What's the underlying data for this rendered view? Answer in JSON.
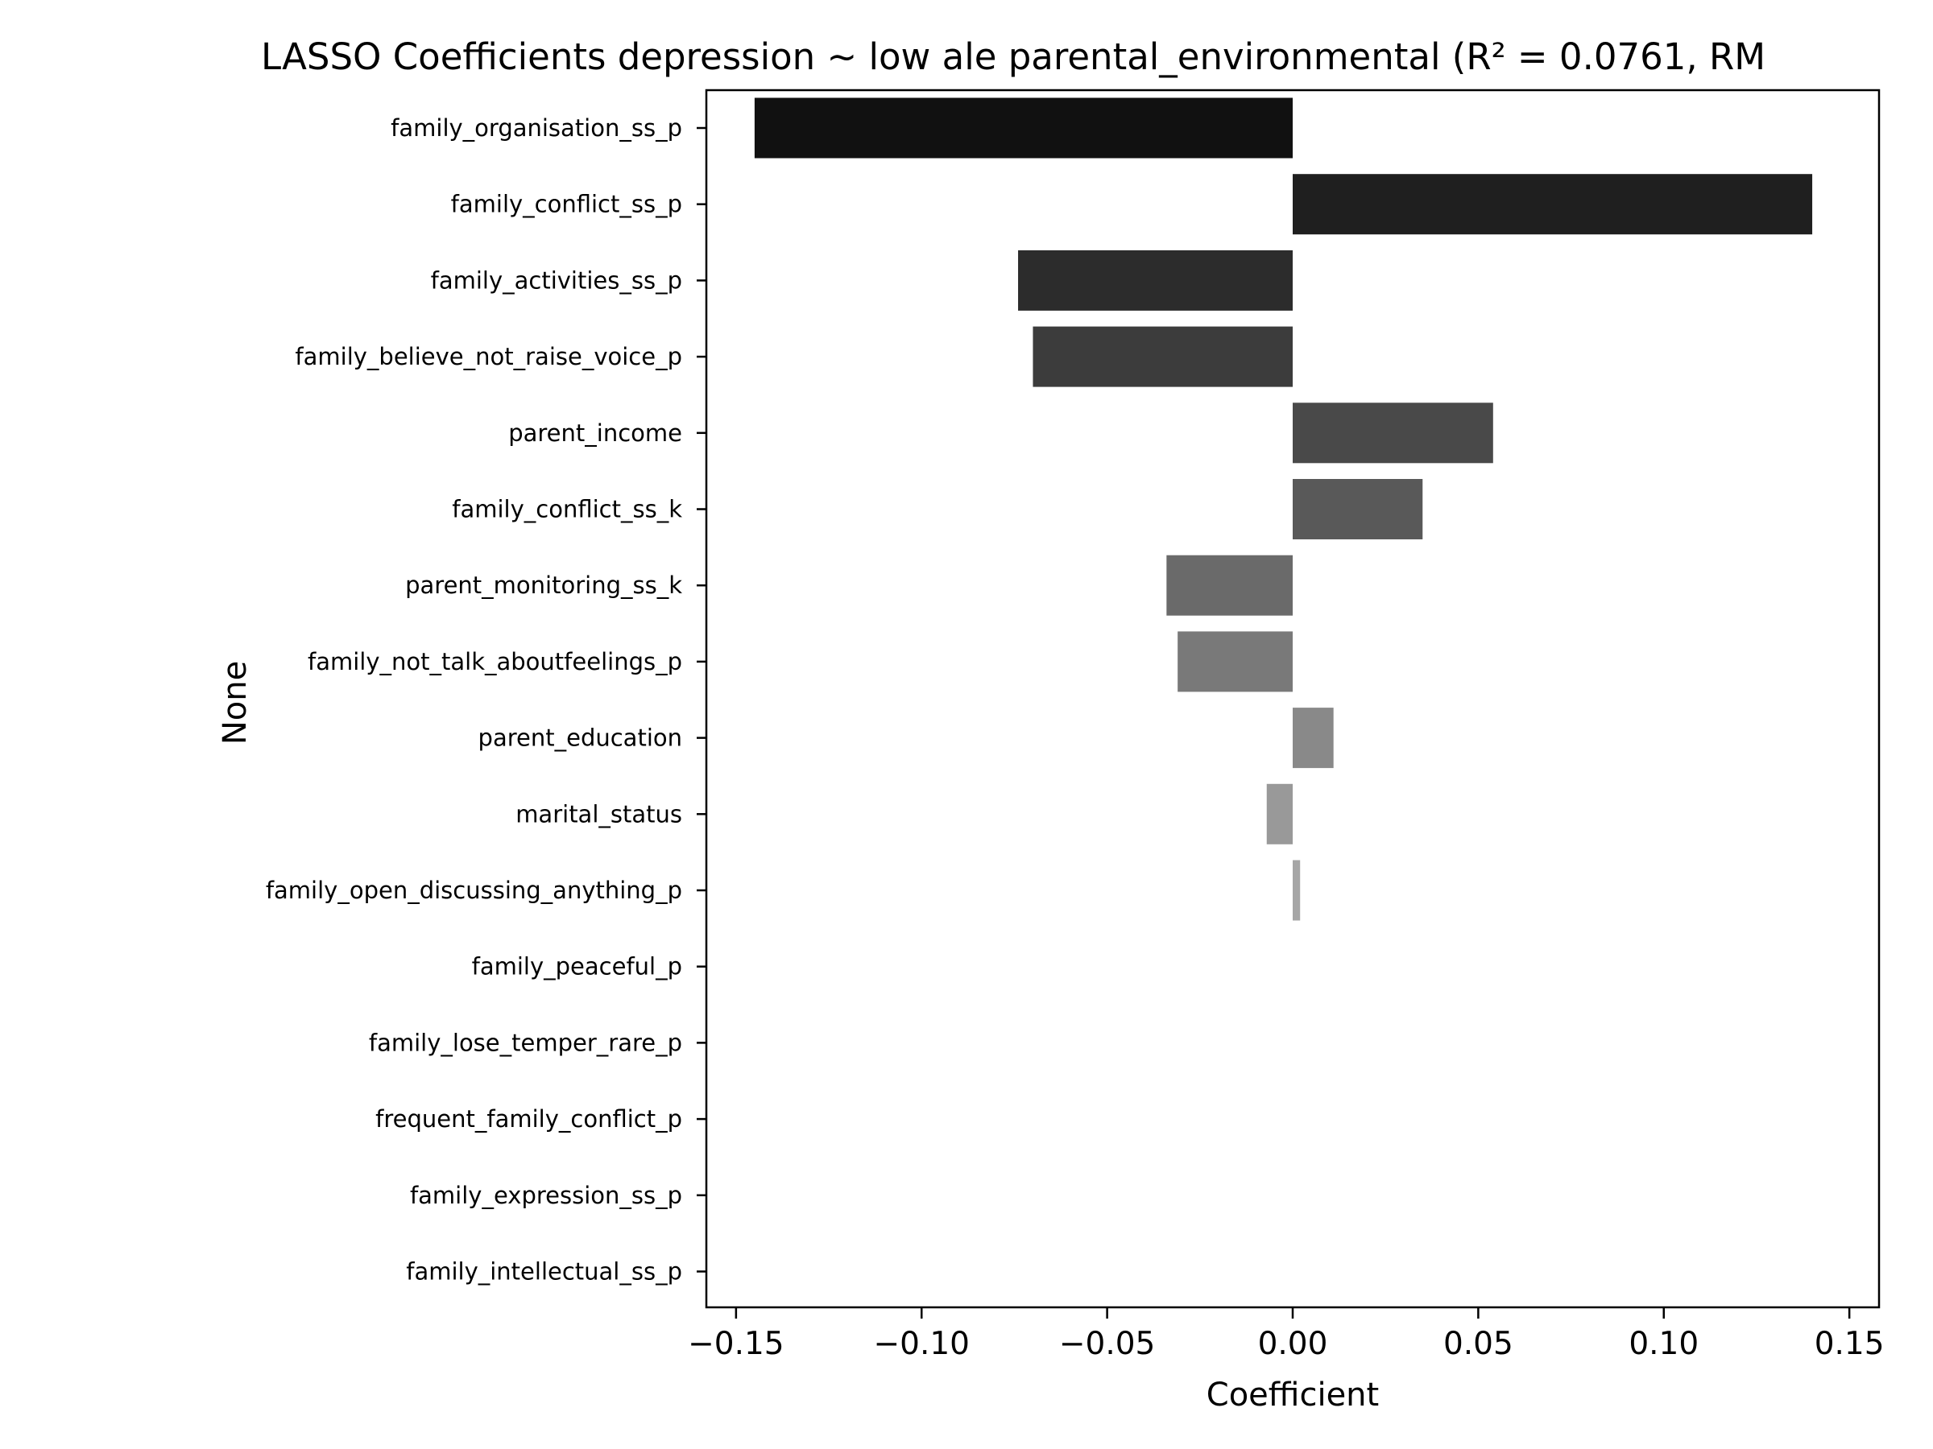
{
  "chart_data": {
    "type": "bar",
    "orientation": "horizontal",
    "title": "LASSO Coefficients depression ~ low ale parental_environmental (R² = 0.0761, RM",
    "xlabel": "Coefficient",
    "ylabel": "None",
    "xlim": [
      -0.158,
      0.158
    ],
    "xticks": [
      -0.15,
      -0.1,
      -0.05,
      0.0,
      0.05,
      0.1,
      0.15
    ],
    "xtick_labels": [
      "−0.15",
      "−0.10",
      "−0.05",
      "0.00",
      "0.05",
      "0.10",
      "0.15"
    ],
    "grid": false,
    "legend": "none",
    "categories": [
      "family_organisation_ss_p",
      "family_conflict_ss_p",
      "family_activities_ss_p",
      "family_believe_not_raise_voice_p",
      "parent_income",
      "family_conflict_ss_k",
      "parent_monitoring_ss_k",
      "family_not_talk_aboutfeelings_p",
      "parent_education",
      "marital_status",
      "family_open_discussing_anything_p",
      "family_peaceful_p",
      "family_lose_temper_rare_p",
      "frequent_family_conflict_p",
      "family_expression_ss_p",
      "family_intellectual_ss_p"
    ],
    "values": [
      -0.145,
      0.14,
      -0.074,
      -0.07,
      0.054,
      0.035,
      -0.034,
      -0.031,
      0.011,
      -0.007,
      0.002,
      0,
      0,
      0,
      0,
      0
    ],
    "colors": [
      "#111111",
      "#1f1f1f",
      "#2c2c2c",
      "#3c3c3c",
      "#494949",
      "#595959",
      "#6a6a6a",
      "#797979",
      "#898989",
      "#999999",
      "#a6a6a6",
      "#b5b5b5",
      "#c3c3c3",
      "#d0d0d0",
      "#dcdcdc",
      "#e8e8e8"
    ]
  }
}
